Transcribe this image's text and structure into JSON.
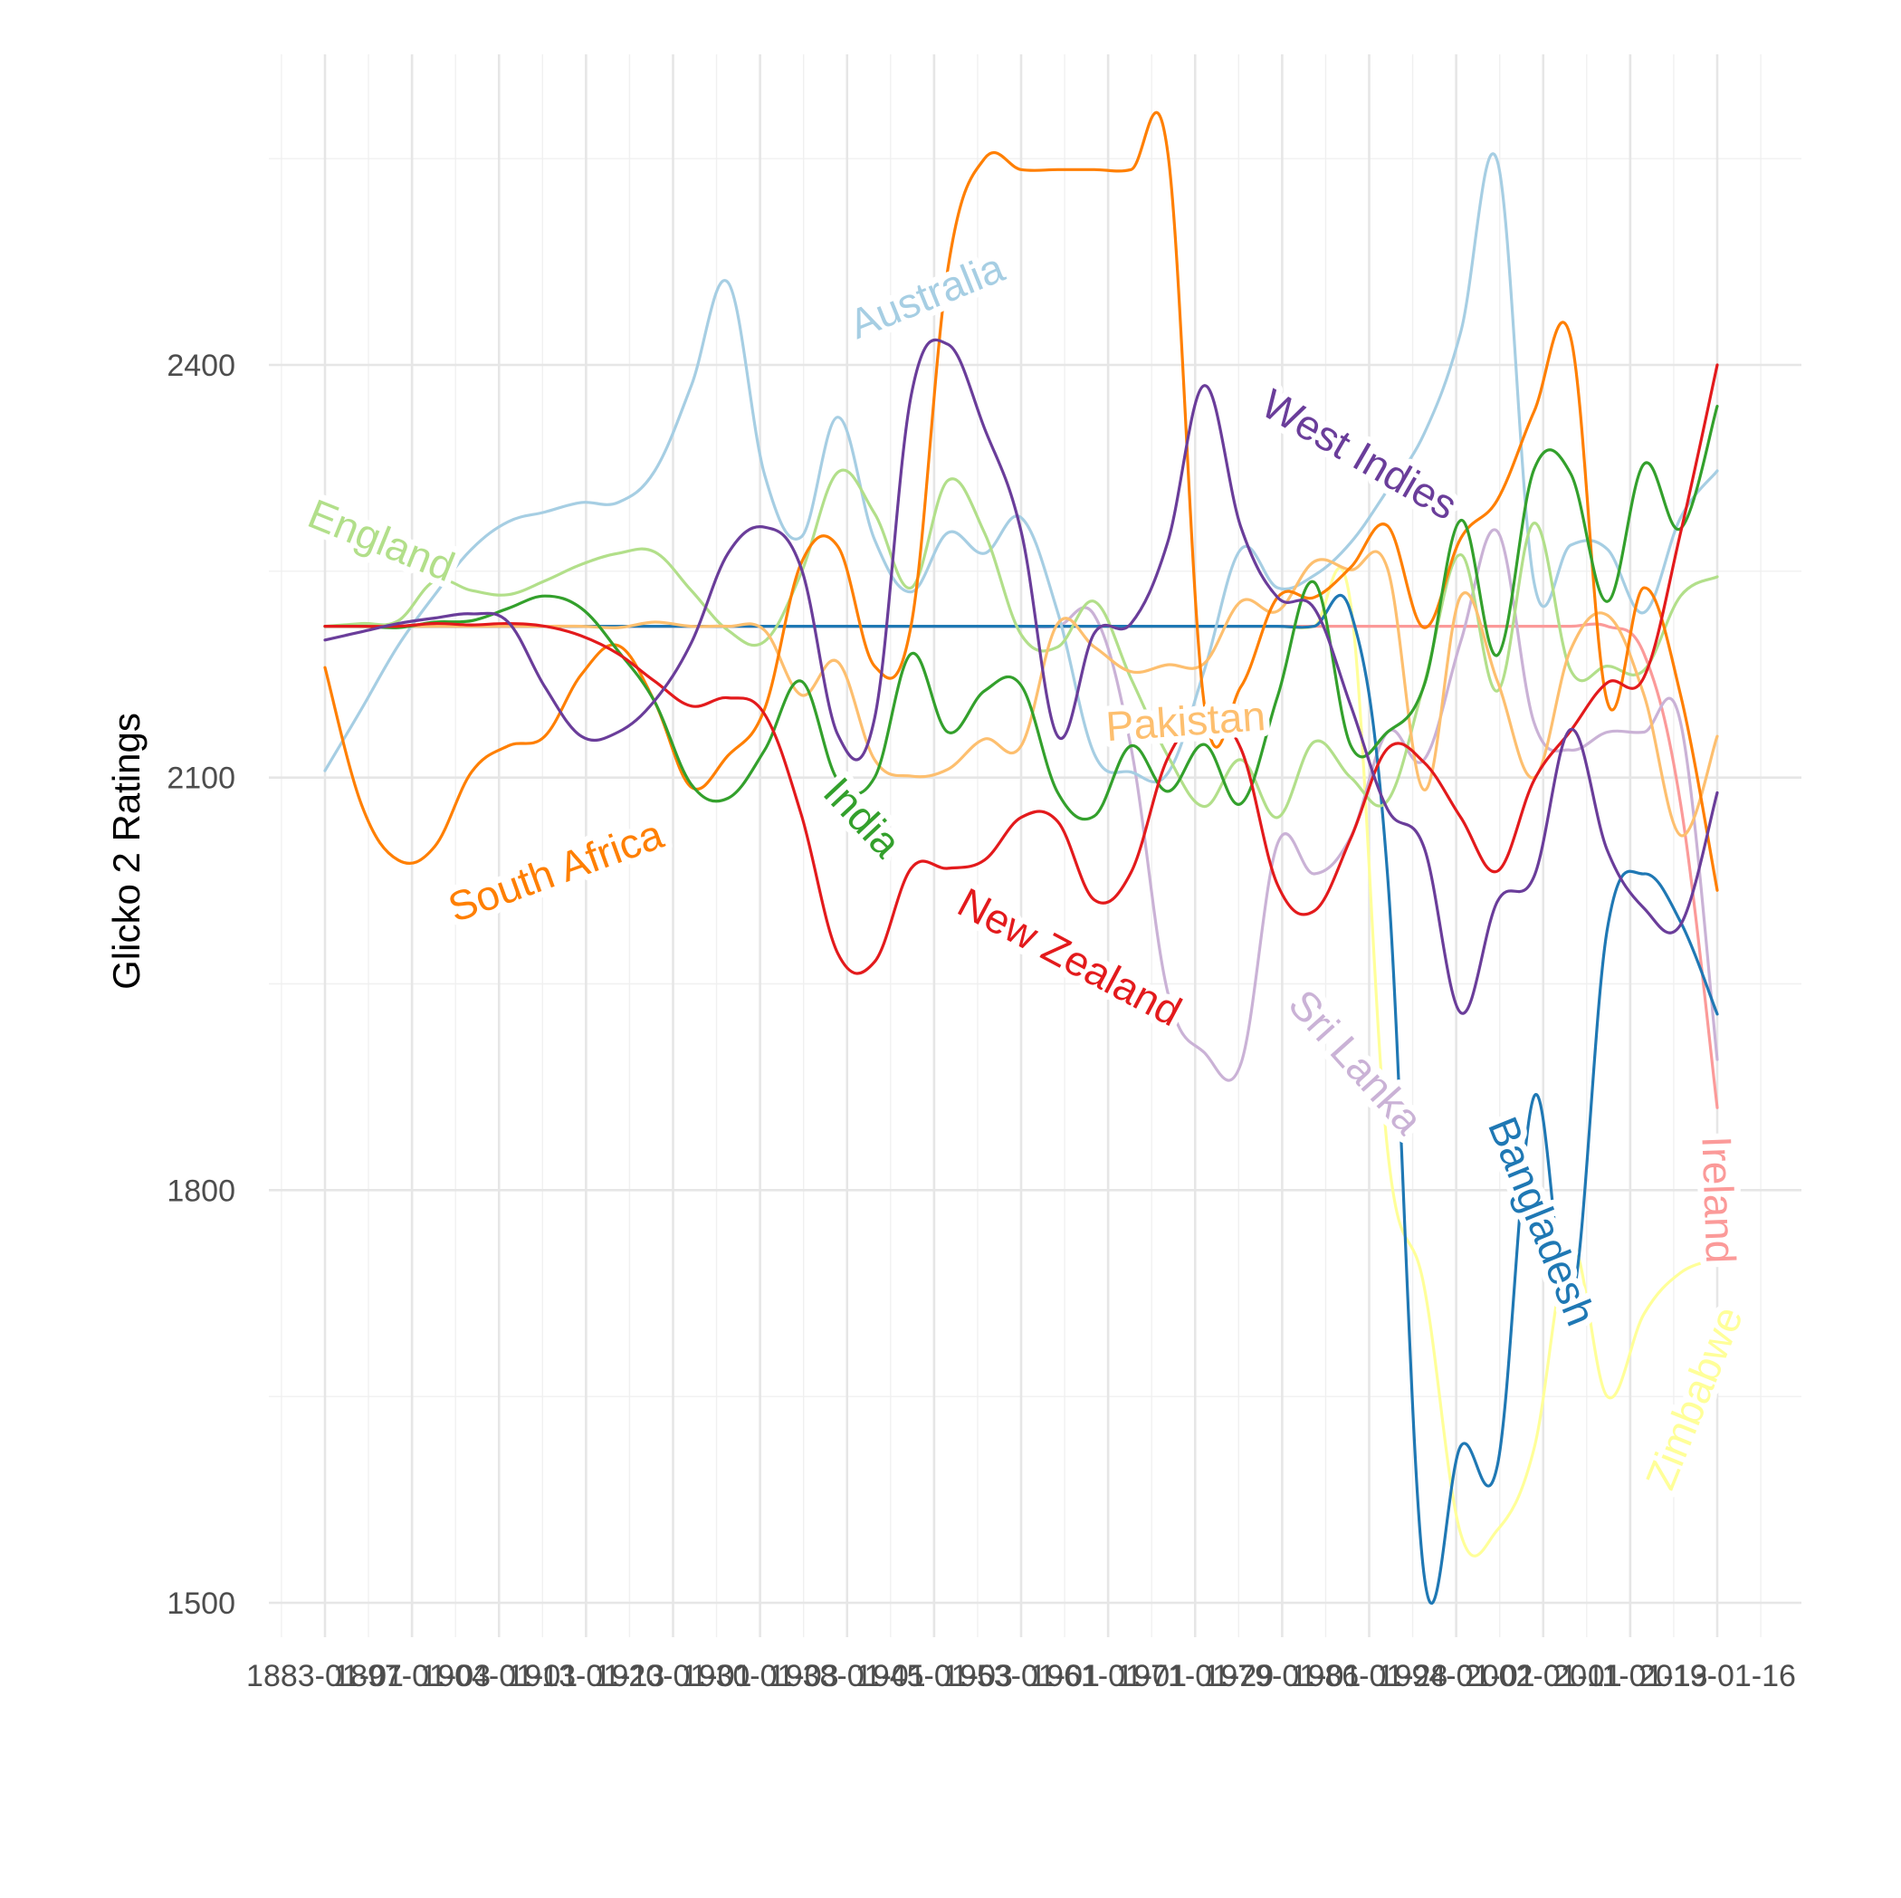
{
  "chart_data": {
    "type": "line",
    "title": "",
    "xlabel": "",
    "ylabel": "Glicko 2 Ratings",
    "y_ticks": [
      1500,
      1800,
      2100,
      2400
    ],
    "ylim": [
      1470,
      2590
    ],
    "x_tick_labels": [
      "1883-01-01",
      "1897-01-03",
      "1904-01-01",
      "1913-01-13",
      "1920-01-01",
      "1930-01-03",
      "1938-01-01",
      "1945-01-03",
      "1953-01-01",
      "1961-01-01",
      "1971-01-29",
      "1979-01-01",
      "1986-01-28",
      "1994-01-01",
      "2002-01-01",
      "2011-01-13",
      "2019-01-16"
    ],
    "grid": true,
    "legend": "direct labels",
    "series": [
      {
        "name": "Australia",
        "color": "#a6cee3",
        "values": [
          2105,
          2150,
          2196,
          2233,
          2266,
          2286,
          2293,
          2300,
          2300,
          2323,
          2385,
          2460,
          2320,
          2275,
          2362,
          2273,
          2235,
          2278,
          2263,
          2289,
          2220,
          2117,
          2104,
          2103,
          2178,
          2266,
          2238,
          2247,
          2271,
          2309,
          2350,
          2424,
          2548,
          2242,
          2269,
          2266,
          2220,
          2289,
          2323
        ]
      },
      {
        "name": "England",
        "color": "#b2df8a",
        "values": [
          2210,
          2212,
          2214,
          2243,
          2236,
          2233,
          2243,
          2255,
          2263,
          2264,
          2236,
          2207,
          2199,
          2249,
          2322,
          2292,
          2238,
          2316,
          2278,
          2204,
          2195,
          2228,
          2172,
          2116,
          2079,
          2113,
          2071,
          2126,
          2100,
          2083,
          2168,
          2262,
          2163,
          2285,
          2178,
          2181,
          2178,
          2232,
          2246
        ]
      },
      {
        "name": "South Africa",
        "color": "#ff7f00",
        "values": [
          2180,
          2080,
          2040,
          2050,
          2104,
          2123,
          2130,
          2175,
          2196,
          2155,
          2093,
          2116,
          2150,
          2256,
          2268,
          2181,
          2211,
          2470,
          2550,
          2542,
          2542,
          2542,
          2542,
          2555,
          2153,
          2166,
          2231,
          2231,
          2253,
          2283,
          2209,
          2274,
          2302,
          2366,
          2420,
          2155,
          2238,
          2160,
          2018
        ]
      },
      {
        "name": "India",
        "color": "#33a02c",
        "values": [
          2210,
          2210,
          2209,
          2213,
          2214,
          2223,
          2232,
          2223,
          2192,
          2155,
          2095,
          2085,
          2120,
          2170,
          2098,
          2100,
          2190,
          2133,
          2163,
          2167,
          2089,
          2072,
          2123,
          2090,
          2124,
          2081,
          2159,
          2242,
          2123,
          2133,
          2167,
          2287,
          2189,
          2324,
          2321,
          2228,
          2328,
          2281,
          2370
        ]
      },
      {
        "name": "New Zealand",
        "color": "#e31a1c",
        "values": [
          2210,
          2210,
          2210,
          2212,
          2211,
          2212,
          2210,
          2203,
          2190,
          2170,
          2152,
          2158,
          2146,
          2073,
          1972,
          1966,
          2034,
          2034,
          2040,
          2071,
          2068,
          2011,
          2031,
          2114,
          2143,
          2121,
          2022,
          2003,
          2056,
          2121,
          2111,
          2071,
          2032,
          2098,
          2134,
          2169,
          2173,
          2278,
          2400
        ]
      },
      {
        "name": "Pakistan",
        "color": "#fdbf6f",
        "values": [
          2210,
          2210,
          2210,
          2210,
          2210,
          2210,
          2210,
          2210,
          2209,
          2213,
          2210,
          2210,
          2207,
          2160,
          2184,
          2113,
          2101,
          2106,
          2128,
          2123,
          2212,
          2195,
          2177,
          2182,
          2183,
          2228,
          2221,
          2257,
          2251,
          2252,
          2091,
          2232,
          2170,
          2100,
          2193,
          2218,
          2160,
          2058,
          2130
        ]
      },
      {
        "name": "West Indies",
        "color": "#6a3d9a",
        "values": [
          2200,
          2206,
          2212,
          2216,
          2219,
          2213,
          2166,
          2130,
          2133,
          2156,
          2198,
          2263,
          2282,
          2252,
          2131,
          2143,
          2378,
          2415,
          2354,
          2279,
          2130,
          2205,
          2212,
          2271,
          2385,
          2282,
          2231,
          2223,
          2152,
          2077,
          2049,
          1929,
          2010,
          2028,
          2135,
          2047,
          2005,
          1993,
          2089
        ]
      },
      {
        "name": "Sri Lanka",
        "color": "#cab2d6",
        "values": [
          2210,
          2210,
          2210,
          2210,
          2210,
          2210,
          2210,
          2210,
          2210,
          2210,
          2210,
          2210,
          2210,
          2210,
          2210,
          2210,
          2210,
          2210,
          2210,
          2210,
          2210,
          2218,
          2122,
          1944,
          1900,
          1892,
          2052,
          2030,
          2057,
          2133,
          2113,
          2199,
          2279,
          2140,
          2120,
          2133,
          2133,
          2140,
          1895
        ]
      },
      {
        "name": "Bangladesh",
        "color": "#1f78b4",
        "values": [
          2210,
          2210,
          2210,
          2210,
          2210,
          2210,
          2210,
          2210,
          2210,
          2210,
          2210,
          2210,
          2210,
          2210,
          2210,
          2210,
          2210,
          2210,
          2210,
          2210,
          2210,
          2210,
          2210,
          2210,
          2210,
          2210,
          2210,
          2210,
          2220,
          2030,
          1520,
          1614,
          1600,
          1868,
          1716,
          1990,
          2030,
          1995,
          1928
        ]
      },
      {
        "name": "Ireland",
        "color": "#fb9a99",
        "values": [
          2210,
          2210,
          2210,
          2210,
          2210,
          2210,
          2210,
          2210,
          2210,
          2210,
          2210,
          2210,
          2210,
          2210,
          2210,
          2210,
          2210,
          2210,
          2210,
          2210,
          2210,
          2210,
          2210,
          2210,
          2210,
          2210,
          2210,
          2210,
          2210,
          2210,
          2210,
          2210,
          2210,
          2210,
          2210,
          2210,
          2190,
          2081,
          1860
        ]
      },
      {
        "name": "Zimbabwe",
        "color": "#ffff99",
        "values": [
          2210,
          2210,
          2210,
          2210,
          2210,
          2210,
          2210,
          2210,
          2210,
          2210,
          2210,
          2210,
          2210,
          2210,
          2210,
          2210,
          2210,
          2210,
          2210,
          2210,
          2210,
          2210,
          2210,
          2210,
          2210,
          2210,
          2210,
          2210,
          2225,
          1830,
          1730,
          1550,
          1553,
          1612,
          1760,
          1650,
          1710,
          1740,
          1750
        ]
      }
    ]
  }
}
